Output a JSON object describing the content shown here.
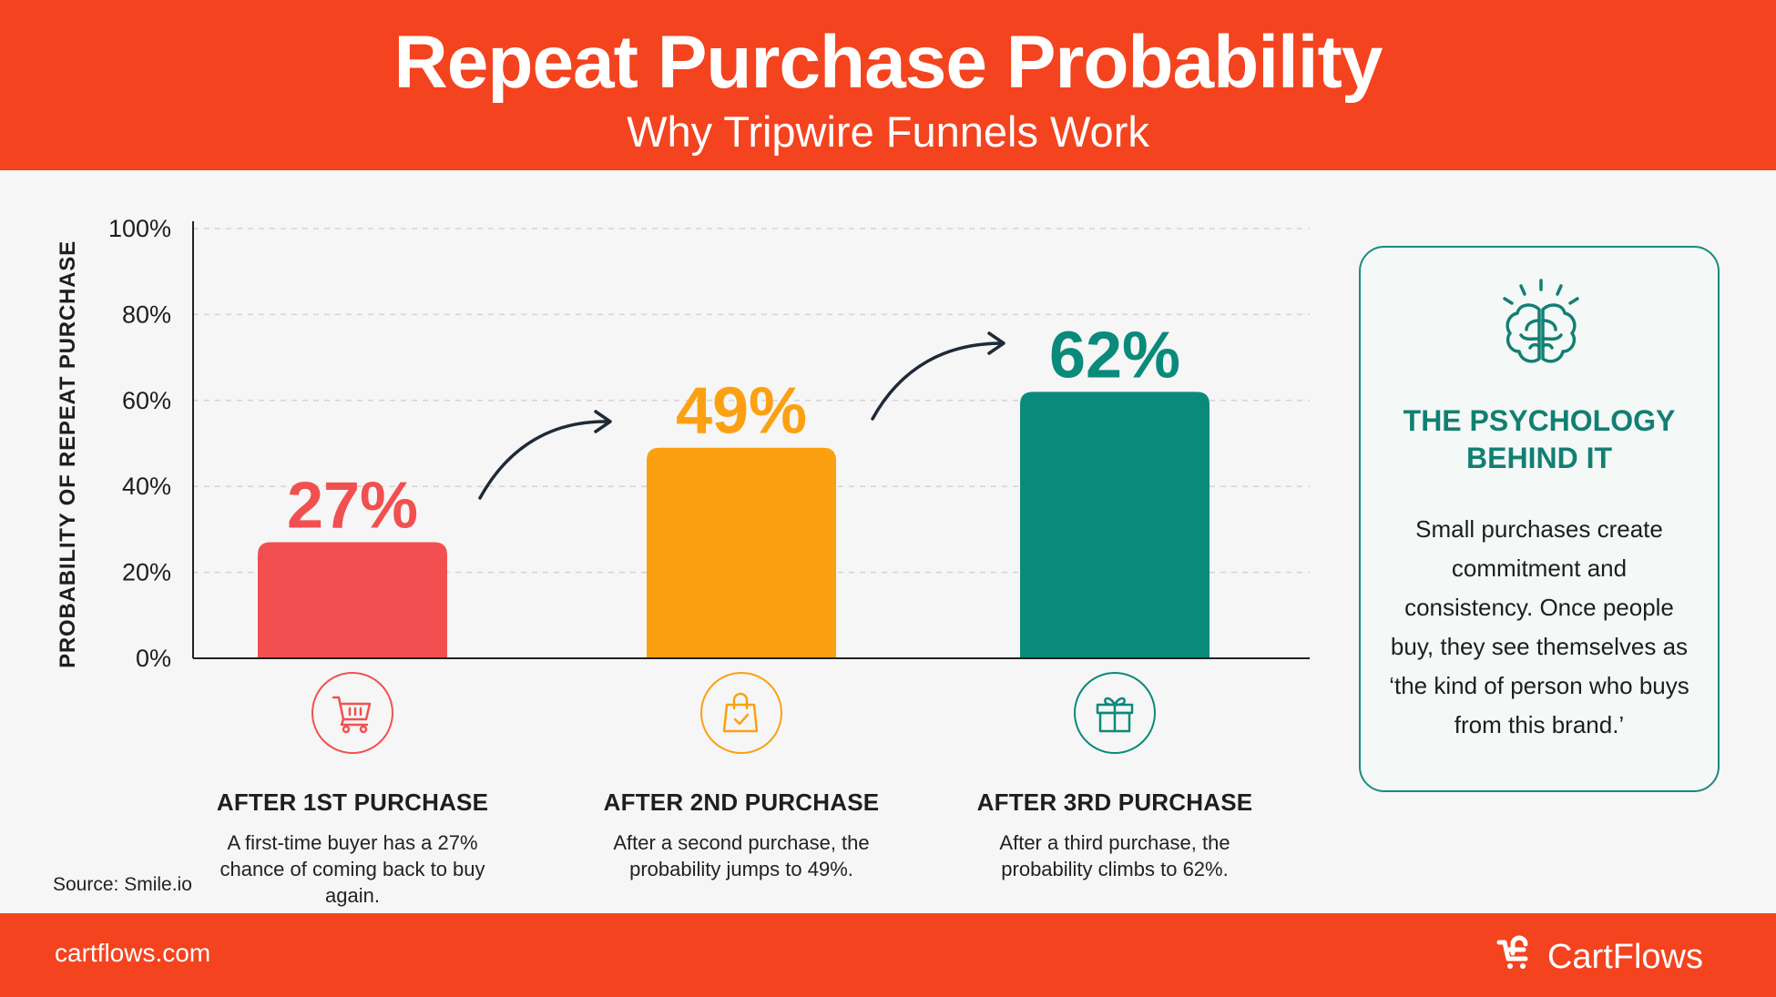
{
  "header": {
    "title": "Repeat Purchase Probability",
    "subtitle": "Why Tripwire Funnels Work"
  },
  "chart_data": {
    "type": "bar",
    "categories": [
      "AFTER 1ST PURCHASE",
      "AFTER 2ND PURCHASE",
      "AFTER 3RD PURCHASE"
    ],
    "values": [
      27,
      49,
      62
    ],
    "value_labels": [
      "27%",
      "49%",
      "62%"
    ],
    "colors": [
      "#f25050",
      "#fba111",
      "#0a8a7a"
    ],
    "ylabel": "PROBABILITY OF REPEAT PURCHASE",
    "ylim": [
      0,
      100
    ],
    "yticks": [
      0,
      20,
      40,
      60,
      80,
      100
    ],
    "ytick_labels": [
      "0%",
      "20%",
      "40%",
      "60%",
      "80%",
      "100%"
    ],
    "grid": true,
    "axis_color": "#222222",
    "grid_color": "#d4d4d4"
  },
  "categories": [
    {
      "title": "AFTER 1ST PURCHASE",
      "description": "A first-time buyer has a 27% chance of coming back to buy again.",
      "icon": "shopping-cart-icon",
      "color": "#f25050"
    },
    {
      "title": "AFTER 2ND PURCHASE",
      "description": "After a second purchase, the probability jumps to 49%.",
      "icon": "shopping-bag-check-icon",
      "color": "#fba111"
    },
    {
      "title": "AFTER 3RD PURCHASE",
      "description": "After a third purchase, the probability climbs to 62%.",
      "icon": "gift-icon",
      "color": "#0a8a7a"
    }
  ],
  "source": "Source: Smile.io",
  "side_card": {
    "icon": "brain-icon",
    "title": "THE PSYCHOLOGY BEHIND IT",
    "body": "Small purchases create commitment and consistency. Once people buy, they see themselves as ‘the kind of person who buys from this brand.’",
    "accent": "#127f72"
  },
  "footer": {
    "site": "cartflows.com",
    "brand": "CartFlows",
    "logo_icon": "cartflows-logo-icon"
  },
  "colors": {
    "brand_orange": "#f4431f",
    "background": "#f6f6f6"
  }
}
